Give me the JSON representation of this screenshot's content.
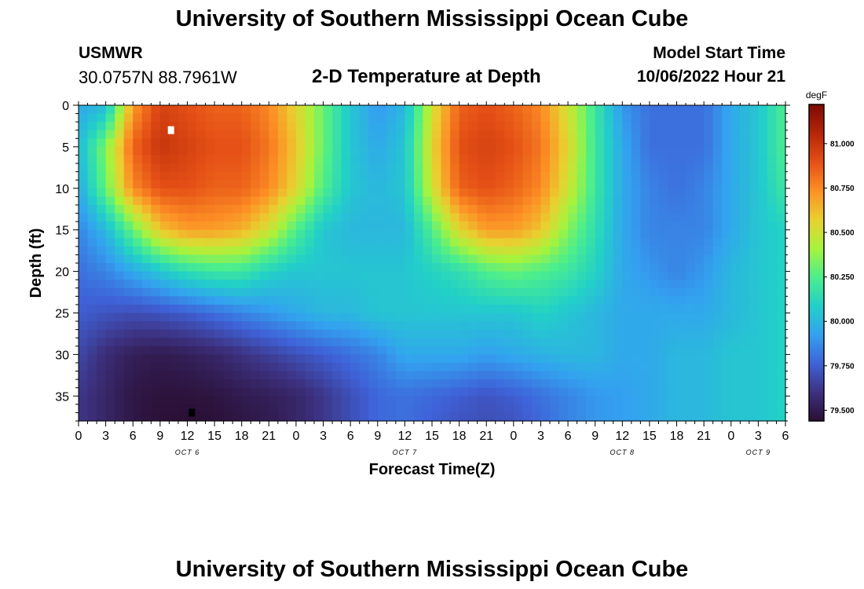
{
  "page": {
    "title_top": "University of Southern Mississippi Ocean Cube",
    "title_bottom": "University of Southern Mississippi Ocean Cube",
    "station_name": "USMWR",
    "station_coords": "30.0757N  88.7961W",
    "model_start_label": "Model Start Time",
    "model_start_value": "10/06/2022 Hour 21"
  },
  "chart_data": {
    "type": "heatmap",
    "title": "2-D Temperature at Depth",
    "xlabel": "Forecast Time(Z)",
    "ylabel": "Depth (ft)",
    "colorbar_unit": "degF",
    "x_hours_range": [
      0,
      78
    ],
    "y_depth_range": [
      0,
      38
    ],
    "x_tick_labels": [
      "0",
      "3",
      "6",
      "9",
      "12",
      "15",
      "18",
      "21",
      "0",
      "3",
      "6",
      "9",
      "12",
      "15",
      "18",
      "21",
      "0",
      "3",
      "6",
      "9",
      "12",
      "15",
      "18",
      "21",
      "0",
      "3",
      "6"
    ],
    "y_ticks": [
      0,
      5,
      10,
      15,
      20,
      25,
      30,
      35
    ],
    "date_labels": [
      {
        "label": "OCT 6",
        "hour": 12
      },
      {
        "label": "OCT 7",
        "hour": 36
      },
      {
        "label": "OCT 8",
        "hour": 60
      },
      {
        "label": "OCT 9",
        "hour": 75
      }
    ],
    "colorbar": {
      "range": [
        79.44,
        81.22
      ],
      "ticks": [
        "81.000",
        "80.750",
        "80.500",
        "80.250",
        "80.000",
        "79.750",
        "79.500"
      ],
      "colors": [
        "#2a0f33",
        "#3d3180",
        "#3f62d8",
        "#33a2f0",
        "#22d0c8",
        "#4cee8c",
        "#a7f33c",
        "#e9d030",
        "#fd8f25",
        "#e55016",
        "#b52608",
        "#7c0a02"
      ]
    },
    "depth_levels_ft": [
      0,
      5,
      10,
      15,
      20,
      25,
      30,
      35,
      38
    ],
    "temperature_field_degF": {
      "hours": [
        0,
        3,
        6,
        9,
        12,
        15,
        18,
        21,
        24,
        27,
        30,
        33,
        36,
        39,
        42,
        45,
        48,
        51,
        54,
        57,
        60,
        63,
        66,
        69,
        72,
        75,
        78
      ],
      "rows": [
        [
          79.95,
          80.0,
          80.7,
          80.95,
          80.9,
          80.85,
          80.85,
          80.75,
          80.55,
          80.3,
          80.05,
          79.9,
          80.0,
          80.5,
          80.85,
          80.9,
          80.85,
          80.75,
          80.5,
          80.2,
          79.9,
          79.8,
          79.8,
          79.8,
          79.95,
          80.05,
          80.25
        ],
        [
          80.0,
          80.35,
          80.85,
          81.0,
          80.95,
          80.9,
          80.9,
          80.8,
          80.6,
          80.3,
          80.05,
          79.95,
          80.05,
          80.55,
          80.9,
          80.95,
          80.9,
          80.8,
          80.55,
          80.2,
          79.95,
          79.8,
          79.8,
          79.8,
          79.95,
          80.05,
          80.25
        ],
        [
          79.95,
          80.3,
          80.75,
          80.9,
          80.9,
          80.85,
          80.85,
          80.75,
          80.55,
          80.25,
          80.05,
          80.0,
          80.05,
          80.5,
          80.85,
          80.9,
          80.85,
          80.75,
          80.5,
          80.2,
          79.95,
          79.85,
          79.8,
          79.85,
          79.95,
          80.05,
          80.2
        ],
        [
          79.85,
          80.0,
          80.3,
          80.6,
          80.7,
          80.7,
          80.65,
          80.5,
          80.25,
          80.05,
          80.0,
          80.0,
          80.0,
          80.25,
          80.55,
          80.7,
          80.7,
          80.6,
          80.35,
          80.15,
          79.95,
          79.85,
          79.85,
          79.85,
          79.95,
          80.05,
          80.1
        ],
        [
          79.8,
          79.85,
          79.95,
          80.05,
          80.15,
          80.2,
          80.2,
          80.1,
          80.05,
          80.05,
          80.05,
          80.05,
          80.05,
          80.1,
          80.15,
          80.25,
          80.3,
          80.25,
          80.2,
          80.1,
          79.95,
          79.9,
          79.85,
          79.9,
          80.0,
          80.05,
          80.1
        ],
        [
          79.75,
          79.72,
          79.7,
          79.72,
          79.75,
          79.8,
          79.85,
          79.9,
          79.95,
          80.0,
          80.0,
          80.05,
          80.05,
          80.05,
          80.05,
          80.05,
          80.05,
          80.1,
          80.05,
          80.0,
          79.95,
          79.95,
          79.95,
          79.95,
          80.0,
          80.05,
          80.1
        ],
        [
          79.68,
          79.58,
          79.52,
          79.5,
          79.52,
          79.55,
          79.6,
          79.65,
          79.7,
          79.75,
          79.8,
          79.85,
          79.95,
          79.95,
          79.95,
          79.92,
          79.95,
          79.98,
          80.0,
          80.0,
          79.95,
          79.95,
          80.0,
          80.0,
          80.05,
          80.05,
          80.1
        ],
        [
          79.62,
          79.55,
          79.48,
          79.46,
          79.46,
          79.47,
          79.5,
          79.52,
          79.55,
          79.62,
          79.7,
          79.78,
          79.8,
          79.78,
          79.75,
          79.72,
          79.75,
          79.8,
          79.85,
          79.9,
          79.92,
          79.95,
          80.0,
          80.0,
          80.05,
          80.05,
          80.1
        ],
        [
          79.62,
          79.55,
          79.48,
          79.45,
          79.44,
          79.45,
          79.48,
          79.5,
          79.55,
          79.62,
          79.7,
          79.78,
          79.8,
          79.76,
          79.72,
          79.7,
          79.72,
          79.78,
          79.85,
          79.9,
          79.92,
          79.95,
          80.0,
          80.0,
          80.05,
          80.05,
          80.1
        ]
      ]
    },
    "markers": [
      {
        "hour": 10.2,
        "depth_ft": 3,
        "color": "#ffffff"
      },
      {
        "hour": 12.5,
        "depth_ft": 37,
        "color": "#000000"
      }
    ]
  }
}
